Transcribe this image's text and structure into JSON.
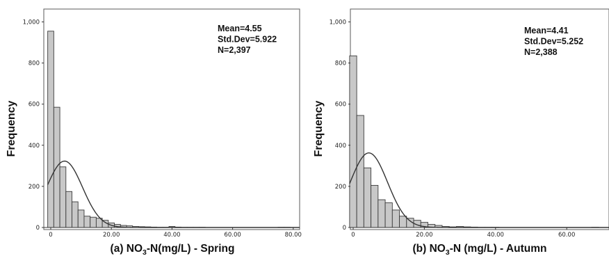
{
  "chart_data": [
    {
      "type": "bar",
      "caption": {
        "prefix": "(a) NO",
        "sub": "3",
        "suffix": "-N(mg/L) - Spring"
      },
      "ylabel": "Frequency",
      "ylim": [
        0,
        1050
      ],
      "xlim": [
        -2,
        82
      ],
      "x_ticks": [
        0,
        20,
        40,
        60,
        80
      ],
      "x_tick_labels": [
        "0",
        "20.00",
        "40.00",
        "60.00",
        "80.00"
      ],
      "y_ticks": [
        0,
        200,
        400,
        600,
        800,
        1000
      ],
      "y_tick_labels": [
        "0",
        "200",
        "400",
        "600",
        "800",
        "1,000"
      ],
      "bin_width": 2,
      "bin_start": -1,
      "values": [
        955,
        585,
        295,
        175,
        125,
        85,
        55,
        50,
        45,
        35,
        22,
        15,
        10,
        8,
        5,
        4,
        3,
        2,
        1,
        1,
        5,
        2,
        1,
        1,
        1,
        1,
        0,
        0,
        0,
        0,
        0,
        0,
        0,
        0,
        0,
        0,
        0,
        0,
        1,
        1,
        0
      ],
      "stats": {
        "mean": "Mean=4.55",
        "std": "Std.Dev=5.922",
        "n": "N=2,397"
      },
      "normal": {
        "mean": 4.55,
        "sd": 5.922,
        "n": 2397
      }
    },
    {
      "type": "bar",
      "caption": {
        "prefix": "(b) NO",
        "sub": "3",
        "suffix": "-N (mg/L) - Autumn"
      },
      "ylabel": "Frequency",
      "ylim": [
        0,
        1050
      ],
      "xlim": [
        -2,
        73
      ],
      "x_ticks": [
        0,
        20,
        40,
        60
      ],
      "x_tick_labels": [
        "0",
        "20.00",
        "40.00",
        "60.00"
      ],
      "y_ticks": [
        0,
        200,
        400,
        600,
        800,
        1000
      ],
      "y_tick_labels": [
        "0",
        "200",
        "400",
        "600",
        "800",
        "1,000"
      ],
      "bin_width": 2,
      "bin_start": -1,
      "values": [
        835,
        545,
        290,
        205,
        135,
        120,
        85,
        55,
        45,
        35,
        25,
        15,
        10,
        5,
        3,
        5,
        3,
        2,
        1,
        1,
        1,
        0,
        0,
        0,
        0,
        0,
        0,
        0,
        0,
        0,
        0,
        0,
        0,
        0,
        1,
        0
      ],
      "stats": {
        "mean": "Mean=4.41",
        "std": "Std.Dev=5.252",
        "n": "N=2,388"
      },
      "normal": {
        "mean": 4.41,
        "sd": 5.252,
        "n": 2388
      }
    }
  ]
}
